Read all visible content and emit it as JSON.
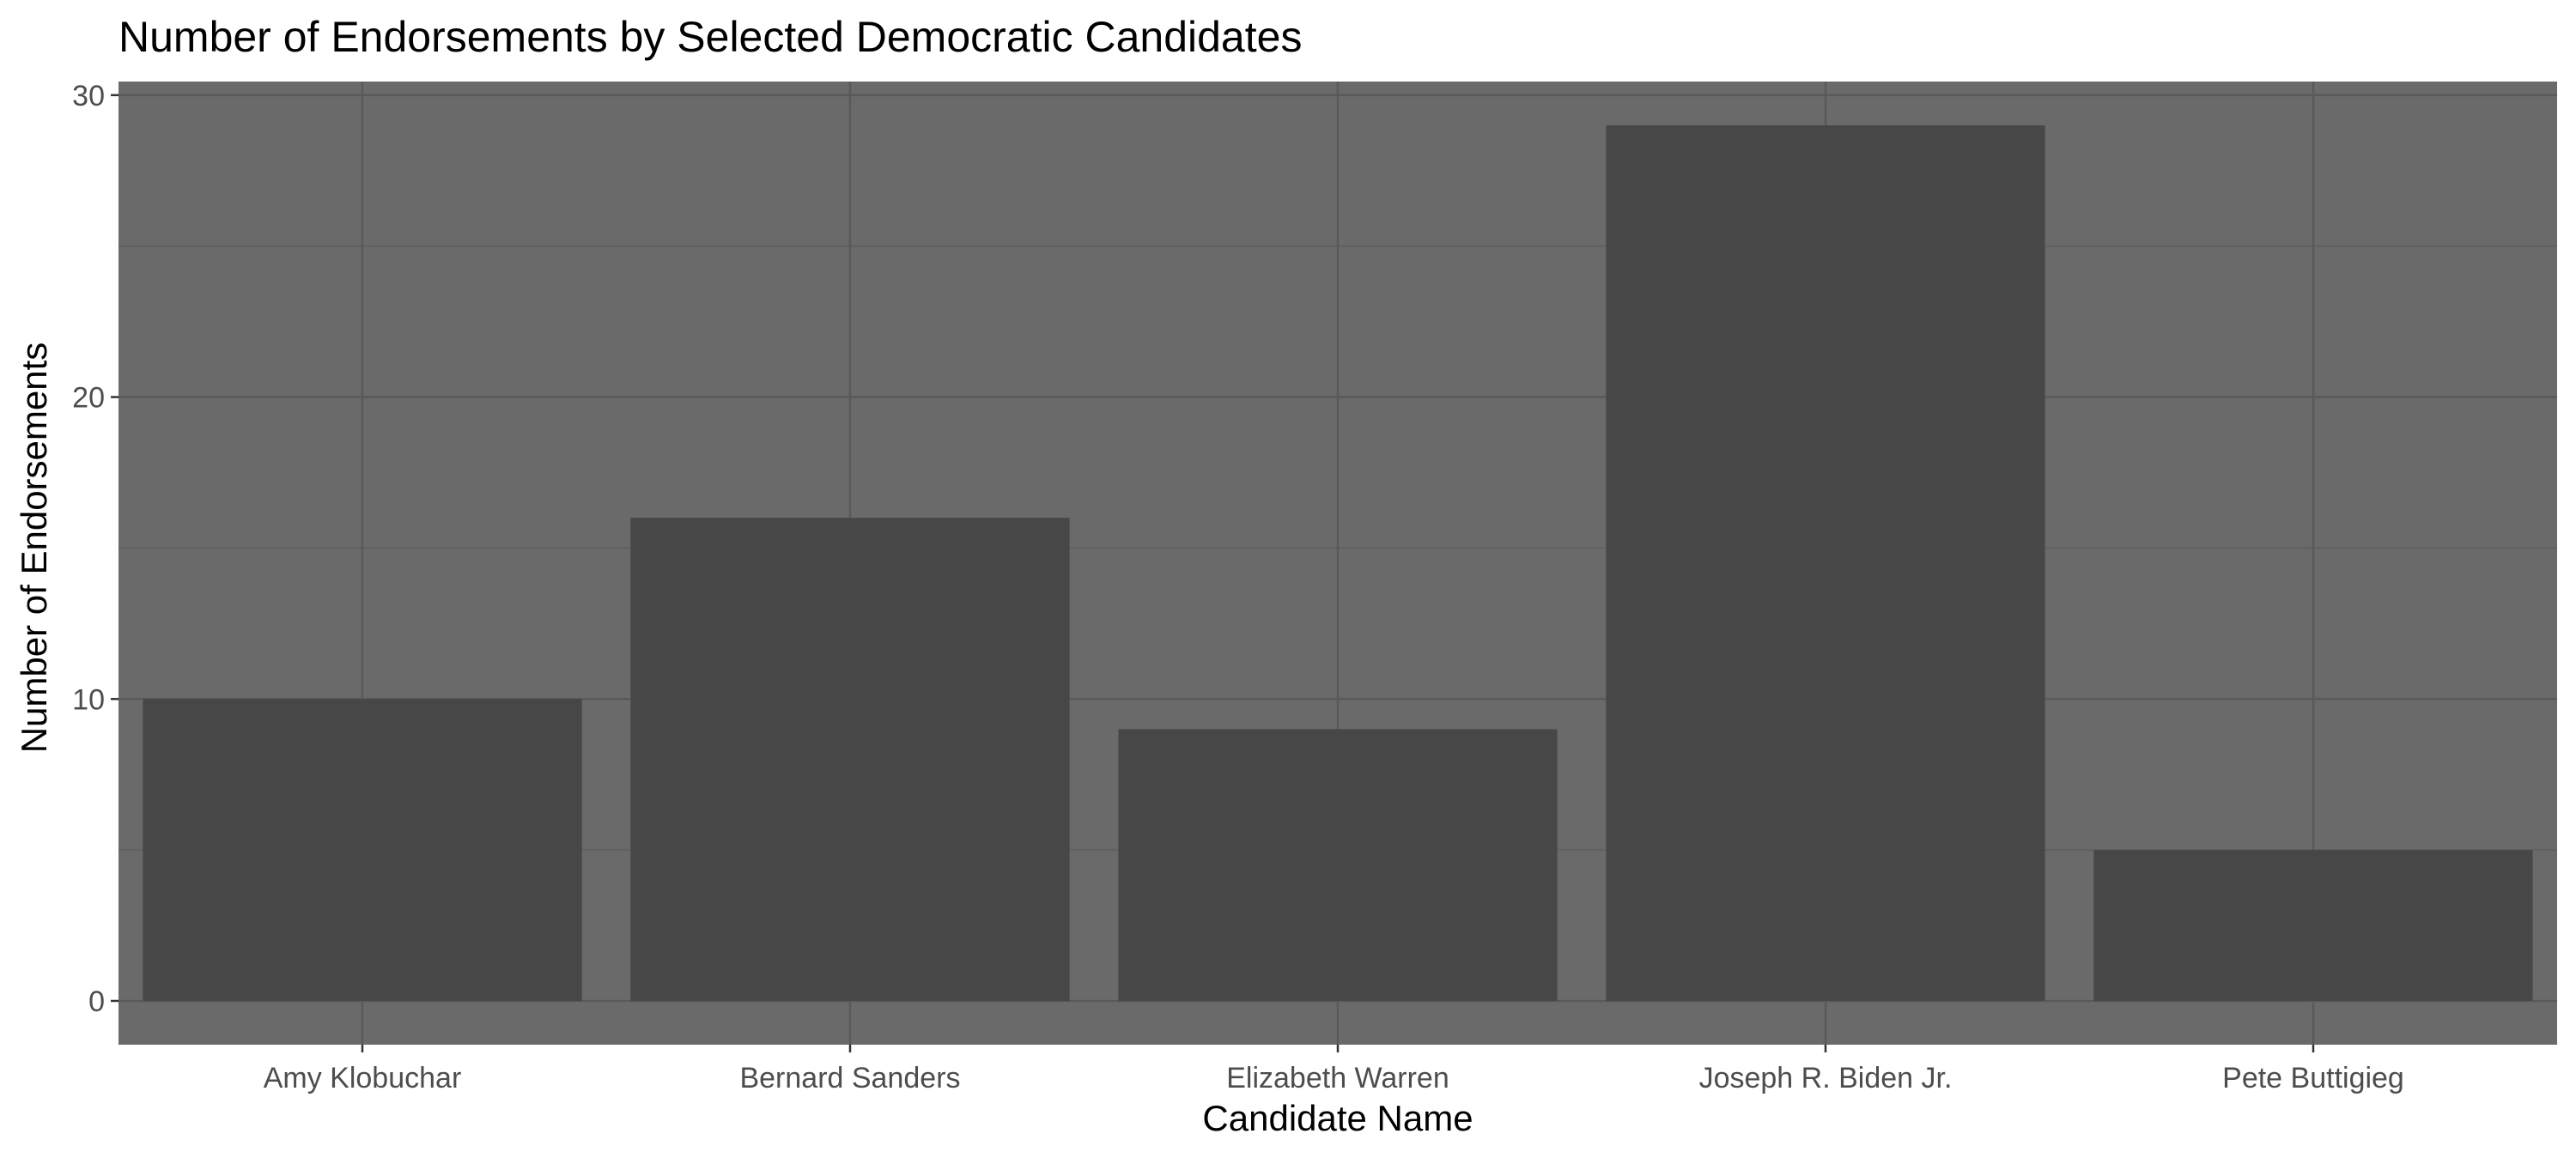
{
  "chart_data": {
    "type": "bar",
    "title": "Number of Endorsements by Selected Democratic Candidates",
    "xlabel": "Candidate Name",
    "ylabel": "Number of Endorsements",
    "categories": [
      "Amy Klobuchar",
      "Bernard Sanders",
      "Elizabeth Warren",
      "Joseph R. Biden Jr.",
      "Pete Buttigieg"
    ],
    "values": [
      10,
      16,
      9,
      29,
      5
    ],
    "ylim": [
      -1.45,
      30.45
    ],
    "yticks": [
      0,
      10,
      20,
      30
    ],
    "ytick_labels": [
      "0",
      "10",
      "20",
      "30"
    ],
    "grid": true,
    "colors": {
      "panel": "#6a6a6a",
      "bar": "#474747",
      "grid_major": "#595959",
      "grid_minor": "#606060"
    }
  }
}
